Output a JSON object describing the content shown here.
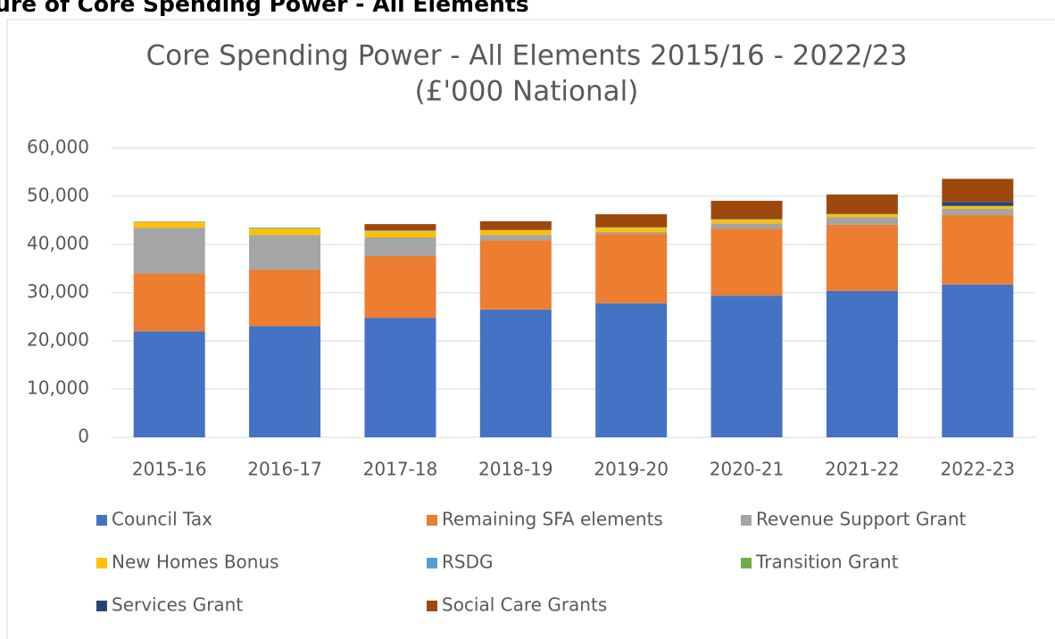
{
  "page_heading": "ure of Core Spending Power - All Elements",
  "chart_data": {
    "type": "stacked_bar",
    "title": "Core Spending Power - All Elements 2015/16 - 2022/23",
    "subtitle": "(£'000 National)",
    "categories": [
      "2015-16",
      "2016-17",
      "2017-18",
      "2018-19",
      "2019-20",
      "2020-21",
      "2021-22",
      "2022-23"
    ],
    "series": [
      {
        "name": "Council Tax",
        "color": "#4472c4",
        "values": [
          22000,
          23100,
          24800,
          26500,
          27800,
          29400,
          30400,
          31700
        ]
      },
      {
        "name": "Remaining SFA elements",
        "color": "#ed7d31",
        "values": [
          12000,
          11700,
          12800,
          14400,
          14400,
          13900,
          13700,
          14400
        ]
      },
      {
        "name": "Revenue Support Grant",
        "color": "#a5a5a5",
        "values": [
          9500,
          7200,
          3900,
          1100,
          400,
          1100,
          1600,
          1300
        ]
      },
      {
        "name": "New Homes Bonus",
        "color": "#ffc000",
        "values": [
          1200,
          1300,
          1250,
          950,
          900,
          800,
          600,
          550
        ]
      },
      {
        "name": "RSDG",
        "color": "#5b9bd5",
        "values": [
          100,
          80,
          90,
          80,
          80,
          80,
          80,
          80
        ]
      },
      {
        "name": "Transition Grant",
        "color": "#70ad47",
        "values": [
          0,
          150,
          100,
          0,
          0,
          0,
          0,
          0
        ]
      },
      {
        "name": "Services Grant",
        "color": "#264478",
        "values": [
          0,
          0,
          0,
          0,
          0,
          0,
          0,
          800
        ]
      },
      {
        "name": "Social Care Grants",
        "color": "#9e480e",
        "values": [
          0,
          0,
          1300,
          1800,
          2700,
          3800,
          4000,
          4800
        ]
      }
    ],
    "ylim": [
      0,
      60000
    ],
    "yticks": [
      {
        "value": 0,
        "label": "0"
      },
      {
        "value": 10000,
        "label": "10,000"
      },
      {
        "value": 20000,
        "label": "20,000"
      },
      {
        "value": 30000,
        "label": "30,000"
      },
      {
        "value": 40000,
        "label": "40,000"
      },
      {
        "value": 50000,
        "label": "50,000"
      },
      {
        "value": 60000,
        "label": "60,000"
      }
    ],
    "grid": true
  }
}
